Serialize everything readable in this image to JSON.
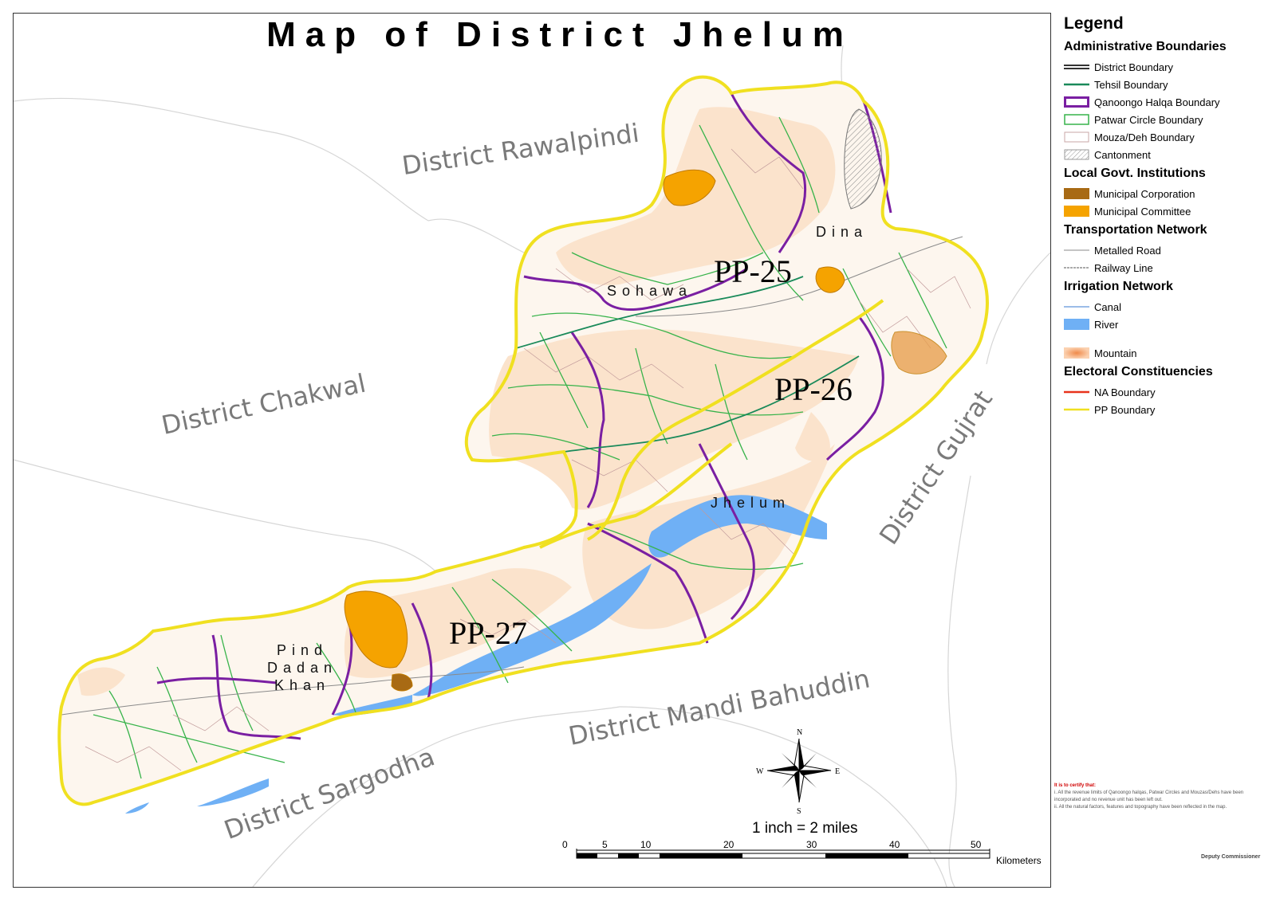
{
  "title": "Map of District Jhelum",
  "neighbors": [
    {
      "name": "District Rawalpindi"
    },
    {
      "name": "District Chakwal"
    },
    {
      "name": "District Gujrat"
    },
    {
      "name": "District Mandi Bahuddin"
    },
    {
      "name": "District Sargodha"
    }
  ],
  "constituencies": [
    {
      "name": "PP-25"
    },
    {
      "name": "PP-26"
    },
    {
      "name": "PP-27"
    }
  ],
  "tehsils": [
    {
      "name": "Sohawa"
    },
    {
      "name": "Dina"
    },
    {
      "name": "Jhelum"
    },
    {
      "name": "Pind Dadan Khan"
    }
  ],
  "legend": {
    "title": "Legend",
    "groups": [
      {
        "heading": "Administrative Boundaries",
        "items": [
          {
            "label": "District Boundary",
            "symbol": "district-boundary",
            "color": "#333333"
          },
          {
            "label": "Tehsil Boundary",
            "symbol": "tehsil-boundary",
            "color": "#1a8a5a"
          },
          {
            "label": "Qanoongo Halqa Boundary",
            "symbol": "qanoongo-boundary",
            "color": "#7a1fa2"
          },
          {
            "label": "Patwar Circle Boundary",
            "symbol": "patwar-boundary",
            "color": "#37b34a"
          },
          {
            "label": "Mouza/Deh Boundary",
            "symbol": "mouza-boundary",
            "color": "#c9a7a7"
          },
          {
            "label": "Cantonment",
            "symbol": "cantonment",
            "color": "#999999"
          }
        ]
      },
      {
        "heading": "Local Govt. Institutions",
        "items": [
          {
            "label": "Municipal Corporation",
            "symbol": "municipal-corporation",
            "color": "#a86a14"
          },
          {
            "label": "Municipal Committee",
            "symbol": "municipal-committee",
            "color": "#f5a300"
          }
        ]
      },
      {
        "heading": "Transportation Network",
        "items": [
          {
            "label": "Metalled Road",
            "symbol": "metalled-road",
            "color": "#888888"
          },
          {
            "label": "Railway Line",
            "symbol": "railway-line",
            "color": "#555555"
          }
        ]
      },
      {
        "heading": "Irrigation Network",
        "items": [
          {
            "label": "Canal",
            "symbol": "canal",
            "color": "#7aa6e0"
          },
          {
            "label": "River",
            "symbol": "river",
            "color": "#6fb0f5"
          },
          {
            "label": "Mountain",
            "symbol": "mountain",
            "color": "#f08a4a",
            "spaced": true
          }
        ]
      },
      {
        "heading": "Electoral Constituencies",
        "items": [
          {
            "label": "NA Boundary",
            "symbol": "na-boundary",
            "color": "#e8331c"
          },
          {
            "label": "PP Boundary",
            "symbol": "pp-boundary",
            "color": "#f0e020"
          }
        ]
      }
    ]
  },
  "compass": {
    "n": "N",
    "s": "S",
    "e": "E",
    "w": "W"
  },
  "scale": {
    "text": "1 inch = 2 miles",
    "ticks": [
      "0",
      "5",
      "10",
      "20",
      "30",
      "40",
      "50"
    ],
    "unit": "Kilometers"
  },
  "certificate": {
    "heading": "It is to certify that:",
    "notes": [
      "i.  All the revenue limits of Qanoongo halqas, Patwar Circles and Mouzas/Dehs have been incorporated and no revenue unit has been left out.",
      "ii. All the natural factors, features and topography have been reflected in the map."
    ],
    "signature": "Deputy Commissioner"
  },
  "colors": {
    "district_fill": "#fbe3cc",
    "pp_boundary": "#f0e020",
    "qanoongo": "#7a1fa2",
    "patwar": "#37b34a",
    "river": "#6fb0f5",
    "municipal": "#f5a300"
  }
}
